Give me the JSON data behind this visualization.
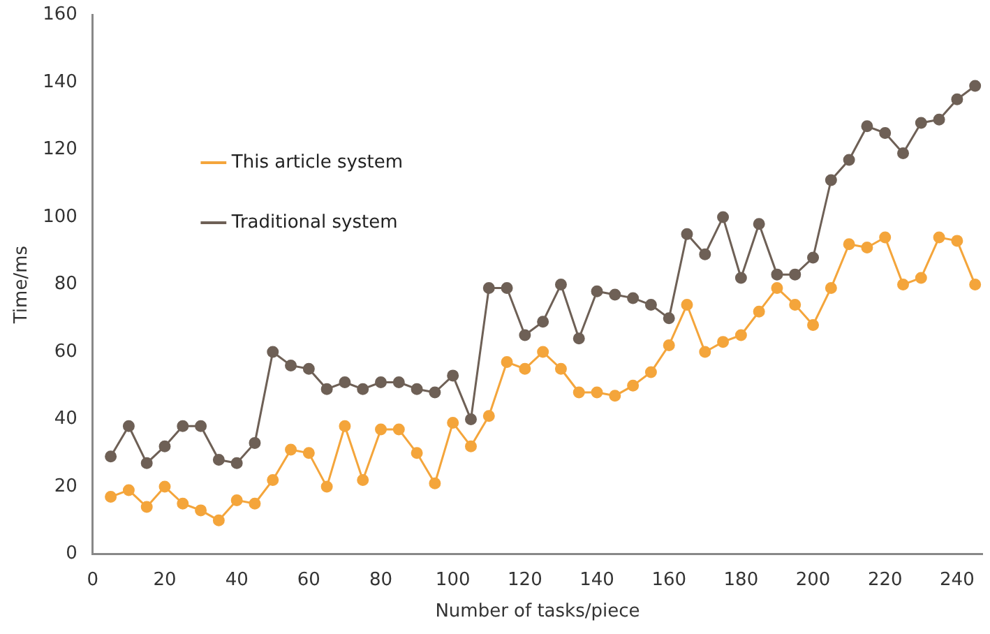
{
  "chart_data": {
    "type": "line",
    "xlabel": "Number of tasks/piece",
    "ylabel": "Time/ms",
    "x": [
      5,
      10,
      15,
      20,
      25,
      30,
      35,
      40,
      45,
      50,
      55,
      60,
      65,
      70,
      75,
      80,
      85,
      90,
      95,
      100,
      105,
      110,
      115,
      120,
      125,
      130,
      135,
      140,
      145,
      150,
      155,
      160,
      165,
      170,
      175,
      180,
      185,
      190,
      195,
      200,
      205,
      210,
      215,
      220,
      225,
      230,
      235,
      240,
      245
    ],
    "series": [
      {
        "name": "This article system",
        "color": "#f4a53b",
        "values": [
          17,
          19,
          14,
          20,
          15,
          13,
          10,
          16,
          15,
          22,
          31,
          30,
          20,
          38,
          22,
          37,
          37,
          30,
          21,
          39,
          32,
          41,
          57,
          55,
          60,
          55,
          48,
          48,
          47,
          50,
          54,
          62,
          74,
          60,
          63,
          65,
          72,
          79,
          74,
          68,
          79,
          92,
          91,
          94,
          80,
          82,
          94,
          93,
          80
        ]
      },
      {
        "name": "Traditional system",
        "color": "#6e6056",
        "values": [
          29,
          38,
          27,
          32,
          38,
          38,
          28,
          27,
          33,
          60,
          56,
          55,
          49,
          51,
          49,
          51,
          51,
          49,
          48,
          53,
          40,
          79,
          79,
          65,
          69,
          80,
          64,
          78,
          77,
          76,
          74,
          70,
          95,
          89,
          100,
          82,
          98,
          83,
          83,
          88,
          111,
          117,
          127,
          125,
          119,
          128,
          129,
          135,
          139
        ]
      }
    ],
    "xlim": [
      0,
      247
    ],
    "xticks": [
      0,
      20,
      40,
      60,
      80,
      100,
      120,
      140,
      160,
      180,
      200,
      220,
      240
    ],
    "ylim": [
      0,
      160
    ],
    "yticks": [
      0,
      20,
      40,
      60,
      80,
      100,
      120,
      140,
      160
    ],
    "grid": false,
    "legend": "top left",
    "marker": "circle",
    "line_style": "solid"
  }
}
